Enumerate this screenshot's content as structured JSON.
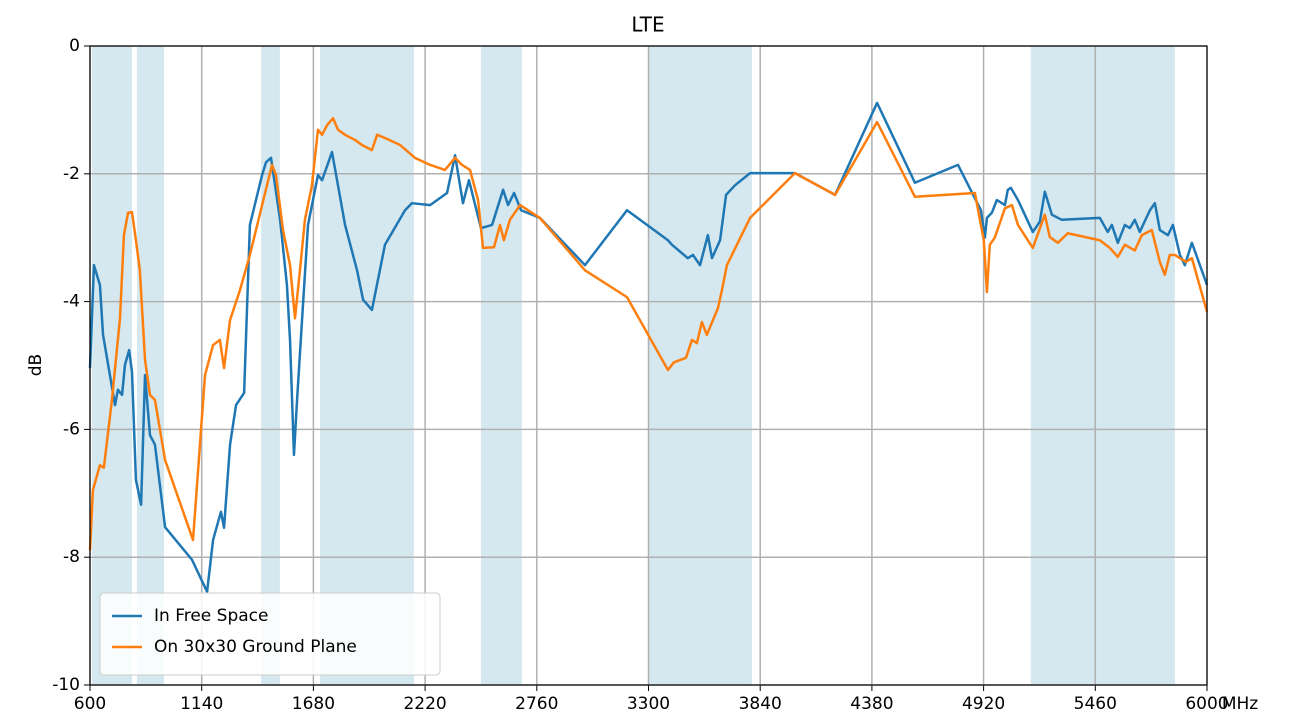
{
  "chart_data": {
    "type": "line",
    "title": "LTE",
    "xlabel": "MHz",
    "ylabel": "dB",
    "xlim": [
      600,
      6000
    ],
    "ylim": [
      -10,
      0
    ],
    "xticks": [
      600,
      1140,
      1680,
      2220,
      2760,
      3300,
      3840,
      4380,
      4920,
      5460,
      6000
    ],
    "yticks": [
      0,
      -2,
      -4,
      -6,
      -8,
      -10
    ],
    "grid": true,
    "legend": "lower left",
    "bands": [
      [
        610,
        803
      ],
      [
        827,
        958
      ],
      [
        1427,
        1518
      ],
      [
        1712,
        2166
      ],
      [
        2490,
        2688
      ],
      [
        3302,
        3800
      ],
      [
        5148,
        5845
      ]
    ],
    "band_color": "#d5e8ef",
    "series": [
      {
        "name": "In Free Space",
        "color": "#1f77b4",
        "x": [
          600,
          619,
          648,
          663,
          721,
          735,
          755,
          769,
          789,
          803,
          822,
          847,
          866,
          890,
          914,
          963,
          1093,
          1166,
          1195,
          1233,
          1248,
          1277,
          1306,
          1345,
          1373,
          1432,
          1451,
          1475,
          1519,
          1552,
          1567,
          1586,
          1601,
          1625,
          1654,
          1702,
          1722,
          1770,
          1833,
          1891,
          1920,
          1963,
          2026,
          2123,
          2156,
          2244,
          2326,
          2365,
          2403,
          2432,
          2490,
          2544,
          2597,
          2621,
          2650,
          2684,
          2775,
          2993,
          3196,
          3394,
          3413,
          3490,
          3515,
          3549,
          3587,
          3607,
          3646,
          3675,
          3718,
          3791,
          4008,
          4202,
          4405,
          4588,
          4796,
          4907,
          4926,
          4936,
          4960,
          4984,
          5023,
          5037,
          5052,
          5086,
          5158,
          5192,
          5216,
          5250,
          5298,
          5482,
          5520,
          5540,
          5569,
          5603,
          5627,
          5651,
          5675,
          5724,
          5748,
          5772,
          5811,
          5835,
          5869,
          5893,
          5927,
          6000
        ],
        "values": [
          -5.04,
          -3.43,
          -3.74,
          -4.52,
          -5.62,
          -5.38,
          -5.46,
          -4.99,
          -4.76,
          -5.1,
          -6.79,
          -7.18,
          -5.15,
          -6.09,
          -6.24,
          -7.53,
          -8.04,
          -8.54,
          -7.73,
          -7.29,
          -7.54,
          -6.24,
          -5.62,
          -5.43,
          -2.8,
          -2.02,
          -1.82,
          -1.75,
          -2.72,
          -3.74,
          -4.6,
          -6.4,
          -5.54,
          -4.29,
          -2.8,
          -2.02,
          -2.1,
          -1.66,
          -2.8,
          -3.51,
          -3.97,
          -4.13,
          -3.11,
          -2.57,
          -2.46,
          -2.49,
          -2.3,
          -1.71,
          -2.46,
          -2.1,
          -2.85,
          -2.8,
          -2.25,
          -2.49,
          -2.3,
          -2.57,
          -2.69,
          -3.43,
          -2.57,
          -3.04,
          -3.11,
          -3.32,
          -3.27,
          -3.43,
          -2.96,
          -3.32,
          -3.04,
          -2.33,
          -2.18,
          -1.99,
          -1.99,
          -2.33,
          -0.89,
          -2.14,
          -1.86,
          -2.57,
          -3.0,
          -2.69,
          -2.61,
          -2.41,
          -2.49,
          -2.25,
          -2.22,
          -2.41,
          -2.91,
          -2.75,
          -2.28,
          -2.64,
          -2.72,
          -2.69,
          -2.91,
          -2.8,
          -3.08,
          -2.8,
          -2.85,
          -2.72,
          -2.91,
          -2.57,
          -2.46,
          -2.88,
          -2.96,
          -2.8,
          -3.27,
          -3.43,
          -3.08,
          -3.74
        ]
      },
      {
        "name": "On 30x30 Ground Plane",
        "color": "#ff7f0e",
        "x": [
          600,
          614,
          648,
          667,
          706,
          745,
          764,
          784,
          803,
          822,
          841,
          866,
          890,
          914,
          963,
          1098,
          1156,
          1195,
          1228,
          1248,
          1277,
          1325,
          1373,
          1432,
          1480,
          1499,
          1533,
          1567,
          1591,
          1615,
          1639,
          1673,
          1702,
          1722,
          1746,
          1775,
          1799,
          1833,
          1881,
          1915,
          1963,
          1988,
          2026,
          2099,
          2171,
          2244,
          2316,
          2365,
          2398,
          2437,
          2476,
          2500,
          2553,
          2582,
          2601,
          2630,
          2679,
          2775,
          2993,
          3196,
          3394,
          3423,
          3481,
          3510,
          3534,
          3558,
          3582,
          3636,
          3655,
          3679,
          3791,
          4008,
          4202,
          4405,
          4588,
          4878,
          4921,
          4936,
          4950,
          4974,
          5023,
          5057,
          5086,
          5158,
          5216,
          5240,
          5279,
          5327,
          5482,
          5530,
          5569,
          5603,
          5651,
          5685,
          5733,
          5772,
          5796,
          5820,
          5845,
          5859,
          5898,
          5927,
          6000
        ],
        "values": [
          -7.89,
          -6.95,
          -6.56,
          -6.6,
          -5.54,
          -4.26,
          -2.96,
          -2.61,
          -2.6,
          -3.04,
          -3.51,
          -4.91,
          -5.46,
          -5.54,
          -6.48,
          -7.73,
          -5.15,
          -4.68,
          -4.6,
          -5.04,
          -4.29,
          -3.82,
          -3.27,
          -2.49,
          -1.86,
          -2.02,
          -2.88,
          -3.43,
          -4.26,
          -3.51,
          -2.72,
          -2.18,
          -1.31,
          -1.39,
          -1.24,
          -1.13,
          -1.31,
          -1.39,
          -1.47,
          -1.55,
          -1.63,
          -1.39,
          -1.44,
          -1.55,
          -1.75,
          -1.86,
          -1.94,
          -1.75,
          -1.86,
          -1.94,
          -2.41,
          -3.16,
          -3.15,
          -2.8,
          -3.04,
          -2.72,
          -2.49,
          -2.69,
          -3.51,
          -3.93,
          -5.07,
          -4.95,
          -4.88,
          -4.6,
          -4.65,
          -4.32,
          -4.52,
          -4.1,
          -3.82,
          -3.43,
          -2.69,
          -1.99,
          -2.33,
          -1.19,
          -2.36,
          -2.3,
          -3.04,
          -3.85,
          -3.11,
          -3.0,
          -2.54,
          -2.49,
          -2.8,
          -3.16,
          -2.64,
          -2.99,
          -3.08,
          -2.93,
          -3.04,
          -3.16,
          -3.3,
          -3.11,
          -3.2,
          -2.96,
          -2.88,
          -3.38,
          -3.58,
          -3.27,
          -3.27,
          -3.3,
          -3.38,
          -3.32,
          -4.16
        ]
      }
    ]
  }
}
